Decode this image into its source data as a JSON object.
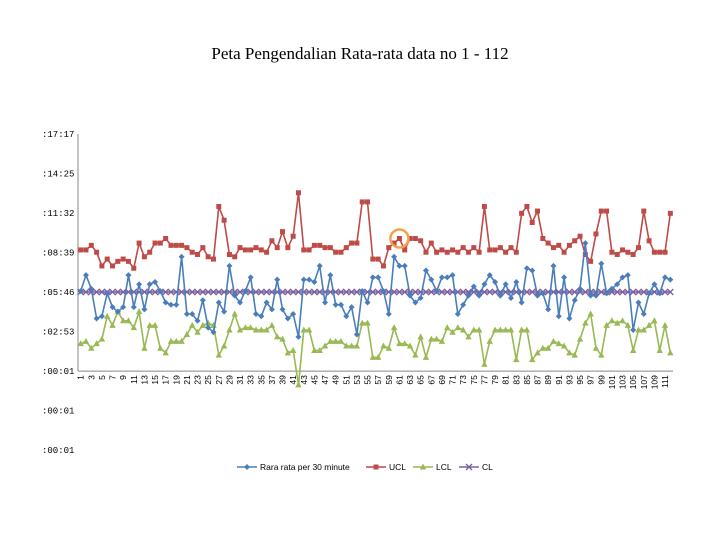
{
  "chart_data": {
    "type": "line",
    "title": "Peta Pengendalian Rata-rata data no 1 - 112",
    "y_tick_labels": [
      ":17:17",
      ":14:25",
      ":11:32",
      ":08:39",
      ":05:46",
      ":02:53",
      ":00:01",
      ":00:01",
      ":00:01"
    ],
    "y_ticks_minutes": [
      1037,
      865,
      692,
      519,
      346,
      173,
      1,
      -172,
      -345
    ],
    "ylim": [
      -345,
      1037
    ],
    "x": [
      1,
      2,
      3,
      4,
      5,
      6,
      7,
      8,
      9,
      10,
      11,
      12,
      13,
      14,
      15,
      16,
      17,
      18,
      19,
      20,
      21,
      22,
      23,
      24,
      25,
      26,
      27,
      28,
      29,
      30,
      31,
      32,
      33,
      34,
      35,
      36,
      37,
      38,
      39,
      40,
      41,
      42,
      43,
      44,
      45,
      46,
      47,
      48,
      49,
      50,
      51,
      52,
      53,
      54,
      55,
      56,
      57,
      58,
      59,
      60,
      61,
      62,
      63,
      64,
      65,
      66,
      67,
      68,
      69,
      70,
      71,
      72,
      73,
      74,
      75,
      76,
      77,
      78,
      79,
      80,
      81,
      82,
      83,
      84,
      85,
      86,
      87,
      88,
      89,
      90,
      91,
      92,
      93,
      94,
      95,
      96,
      97,
      98,
      99,
      100,
      101,
      102,
      103,
      104,
      105,
      106,
      107,
      108,
      109,
      110,
      111,
      112
    ],
    "x_tick_labels": [
      "1",
      "3",
      "5",
      "7",
      "9",
      "11",
      "13",
      "15",
      "17",
      "19",
      "21",
      "23",
      "25",
      "27",
      "29",
      "31",
      "33",
      "35",
      "37",
      "39",
      "41",
      "43",
      "45",
      "47",
      "49",
      "51",
      "53",
      "55",
      "57",
      "59",
      "61",
      "63",
      "65",
      "67",
      "69",
      "71",
      "73",
      "75",
      "77",
      "79",
      "81",
      "83",
      "85",
      "87",
      "89",
      "91",
      "93",
      "95",
      "97",
      "99",
      "101",
      "103",
      "105",
      "107",
      "109",
      "111"
    ],
    "series": [
      {
        "name": "Rara rata per 30 minute",
        "color": "#4a7ebb",
        "marker": "diamond",
        "values": [
          350,
          420,
          360,
          230,
          240,
          340,
          280,
          260,
          280,
          420,
          280,
          380,
          270,
          380,
          390,
          350,
          300,
          290,
          290,
          500,
          250,
          250,
          220,
          310,
          190,
          170,
          300,
          260,
          460,
          330,
          300,
          350,
          410,
          250,
          240,
          300,
          270,
          400,
          270,
          230,
          250,
          150,
          400,
          400,
          390,
          460,
          300,
          420,
          290,
          290,
          240,
          280,
          160,
          350,
          300,
          410,
          410,
          350,
          250,
          500,
          460,
          460,
          330,
          300,
          320,
          440,
          400,
          350,
          410,
          410,
          420,
          250,
          290,
          330,
          370,
          330,
          380,
          420,
          390,
          330,
          380,
          320,
          390,
          300,
          450,
          440,
          330,
          340,
          270,
          460,
          240,
          410,
          230,
          310,
          360,
          560,
          330,
          330,
          470,
          340,
          360,
          380,
          410,
          420,
          180,
          300,
          250,
          340,
          380,
          340,
          410,
          400
        ]
      },
      {
        "name": "UCL",
        "color": "#be4b48",
        "marker": "square",
        "values": [
          530,
          530,
          550,
          520,
          460,
          490,
          460,
          480,
          490,
          480,
          450,
          560,
          500,
          520,
          560,
          560,
          580,
          550,
          550,
          550,
          540,
          520,
          510,
          540,
          500,
          490,
          720,
          660,
          510,
          500,
          540,
          530,
          530,
          540,
          530,
          520,
          570,
          540,
          610,
          540,
          590,
          780,
          530,
          530,
          550,
          550,
          540,
          540,
          520,
          520,
          540,
          560,
          560,
          740,
          740,
          490,
          490,
          460,
          540,
          560,
          580,
          530,
          580,
          580,
          570,
          520,
          560,
          520,
          530,
          520,
          530,
          520,
          540,
          520,
          540,
          520,
          720,
          530,
          530,
          540,
          520,
          540,
          520,
          690,
          720,
          650,
          700,
          580,
          560,
          540,
          550,
          520,
          550,
          570,
          590,
          510,
          480,
          600,
          700,
          700,
          520,
          510,
          530,
          520,
          510,
          540,
          700,
          570,
          520,
          520,
          520,
          690
        ]
      },
      {
        "name": "LCL",
        "color": "#98b954",
        "marker": "triangle",
        "values": [
          120,
          130,
          100,
          120,
          140,
          240,
          200,
          260,
          220,
          220,
          190,
          260,
          100,
          200,
          200,
          100,
          80,
          130,
          130,
          130,
          160,
          200,
          170,
          200,
          210,
          200,
          70,
          110,
          180,
          250,
          180,
          190,
          190,
          180,
          180,
          180,
          200,
          150,
          140,
          80,
          90,
          -60,
          180,
          180,
          90,
          90,
          110,
          130,
          130,
          130,
          110,
          110,
          110,
          210,
          210,
          60,
          60,
          110,
          100,
          190,
          120,
          120,
          110,
          70,
          150,
          60,
          140,
          140,
          130,
          190,
          170,
          190,
          180,
          150,
          180,
          180,
          30,
          130,
          180,
          180,
          180,
          180,
          50,
          180,
          180,
          50,
          80,
          100,
          100,
          130,
          120,
          110,
          80,
          70,
          140,
          210,
          250,
          100,
          70,
          200,
          220,
          210,
          220,
          200,
          90,
          180,
          180,
          200,
          220,
          90,
          200,
          80
        ]
      },
      {
        "name": "CL",
        "color": "#7d60a0",
        "marker": "x",
        "values": [
          346,
          346,
          346,
          346,
          346,
          346,
          346,
          346,
          346,
          346,
          346,
          346,
          346,
          346,
          346,
          346,
          346,
          346,
          346,
          346,
          346,
          346,
          346,
          346,
          346,
          346,
          346,
          346,
          346,
          346,
          346,
          346,
          346,
          346,
          346,
          346,
          346,
          346,
          346,
          346,
          346,
          346,
          346,
          346,
          346,
          346,
          346,
          346,
          346,
          346,
          346,
          346,
          346,
          346,
          346,
          346,
          346,
          346,
          346,
          346,
          346,
          346,
          346,
          346,
          346,
          346,
          346,
          346,
          346,
          346,
          346,
          346,
          346,
          346,
          346,
          346,
          346,
          346,
          346,
          346,
          346,
          346,
          346,
          346,
          346,
          346,
          346,
          346,
          346,
          346,
          346,
          346,
          346,
          346,
          346,
          346,
          346,
          346,
          346,
          346,
          346,
          346,
          346,
          346,
          346,
          346,
          346,
          346,
          346,
          346,
          346,
          346
        ]
      }
    ],
    "highlight_point_index": 60,
    "highlight_color": "#f4a14c",
    "legend_position": "bottom"
  }
}
